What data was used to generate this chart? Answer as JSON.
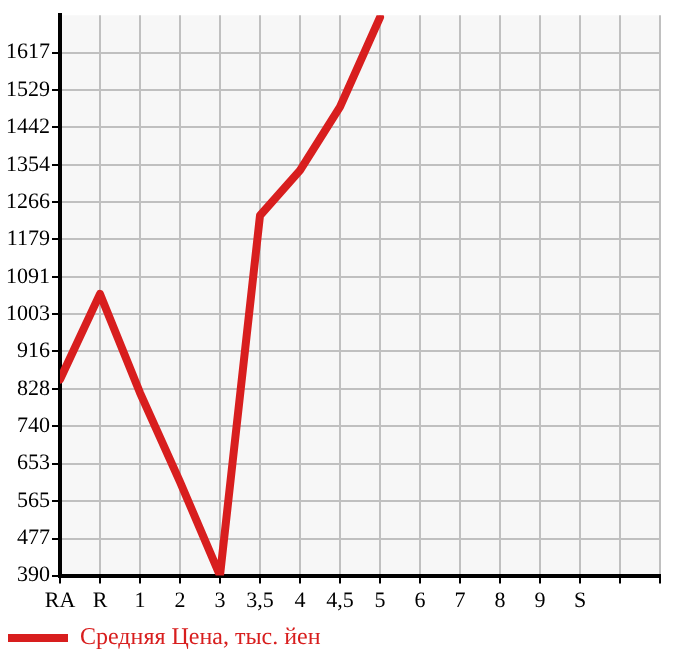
{
  "chart_data": {
    "type": "line",
    "categories": [
      "RA",
      "R",
      "1",
      "2",
      "3",
      "3,5",
      "4",
      "4,5",
      "5",
      "6",
      "7",
      "8",
      "9",
      "S",
      null,
      null
    ],
    "series": [
      {
        "name": "Средняя Цена, тыс. йен",
        "color": "#d81e1e",
        "values": [
          850,
          1051,
          819,
          610,
          390,
          1235,
          1341,
          1490,
          1700,
          null,
          null,
          null,
          null,
          null,
          null,
          null
        ]
      }
    ],
    "ylim": [
      390,
      1705
    ],
    "yticks": [
      390,
      477,
      565,
      653,
      740,
      828,
      916,
      1003,
      1091,
      1179,
      1266,
      1354,
      1442,
      1529,
      1617
    ],
    "grid": true,
    "legend": "bottom left",
    "marker": "none",
    "line_style": "solid"
  }
}
